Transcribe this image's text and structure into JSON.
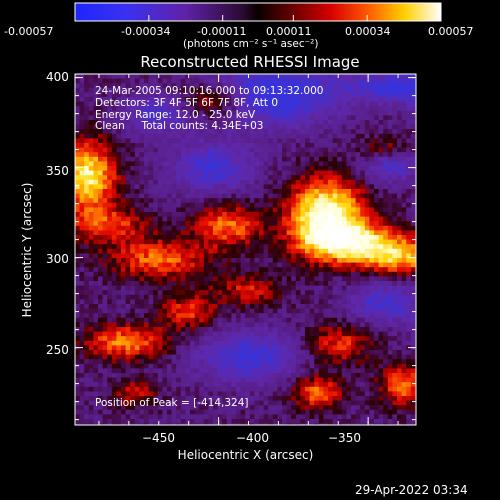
{
  "colorbar": {
    "ticks": [
      "-0.00057",
      "-0.00034",
      "-0.00011",
      "0.00011",
      "0.00034",
      "0.00057"
    ],
    "tick_values": [
      -0.00057,
      -0.00034,
      -0.00011,
      0.00011,
      0.00034,
      0.00057
    ],
    "min": -0.00057,
    "max": 0.00057,
    "units_label": "(photons cm⁻² s⁻¹ asec⁻²)"
  },
  "overlay": {
    "line1": "24-Mar-2005 09:10:16.000 to 09:13:32.000",
    "line2": "Detectors: 3F 4F 5F 6F 7F 8F, Att 0",
    "line3": "Energy Range: 12.0 - 25.0 keV",
    "line4": "Clean     Total counts: 4.34E+03",
    "peak": "Position of Peak = [-414,324]"
  },
  "footer": {
    "timestamp": "29-Apr-2022 03:34"
  },
  "chart_data": {
    "type": "heatmap",
    "title": "Reconstructed RHESSI Image",
    "xlabel": "Heliocentric X (arcsec)",
    "ylabel": "Heliocentric Y (arcsec)",
    "xlim": [
      -498,
      -384
    ],
    "ylim": [
      207,
      402
    ],
    "x_ticks": [
      -450,
      -400,
      -350
    ],
    "y_ticks": [
      250,
      300,
      350,
      400
    ],
    "x_tick_labels": [
      "−450",
      "−400",
      "−350"
    ],
    "y_tick_labels": [
      "250",
      "300",
      "350",
      "400"
    ],
    "peak": {
      "x": -414,
      "y": 324
    },
    "colormap": "RHESSI red-temperature (blue-purple for negative, red-yellow-white for positive)",
    "value_range": [
      -0.00057,
      0.00057
    ],
    "grid": false,
    "legend": "none"
  }
}
